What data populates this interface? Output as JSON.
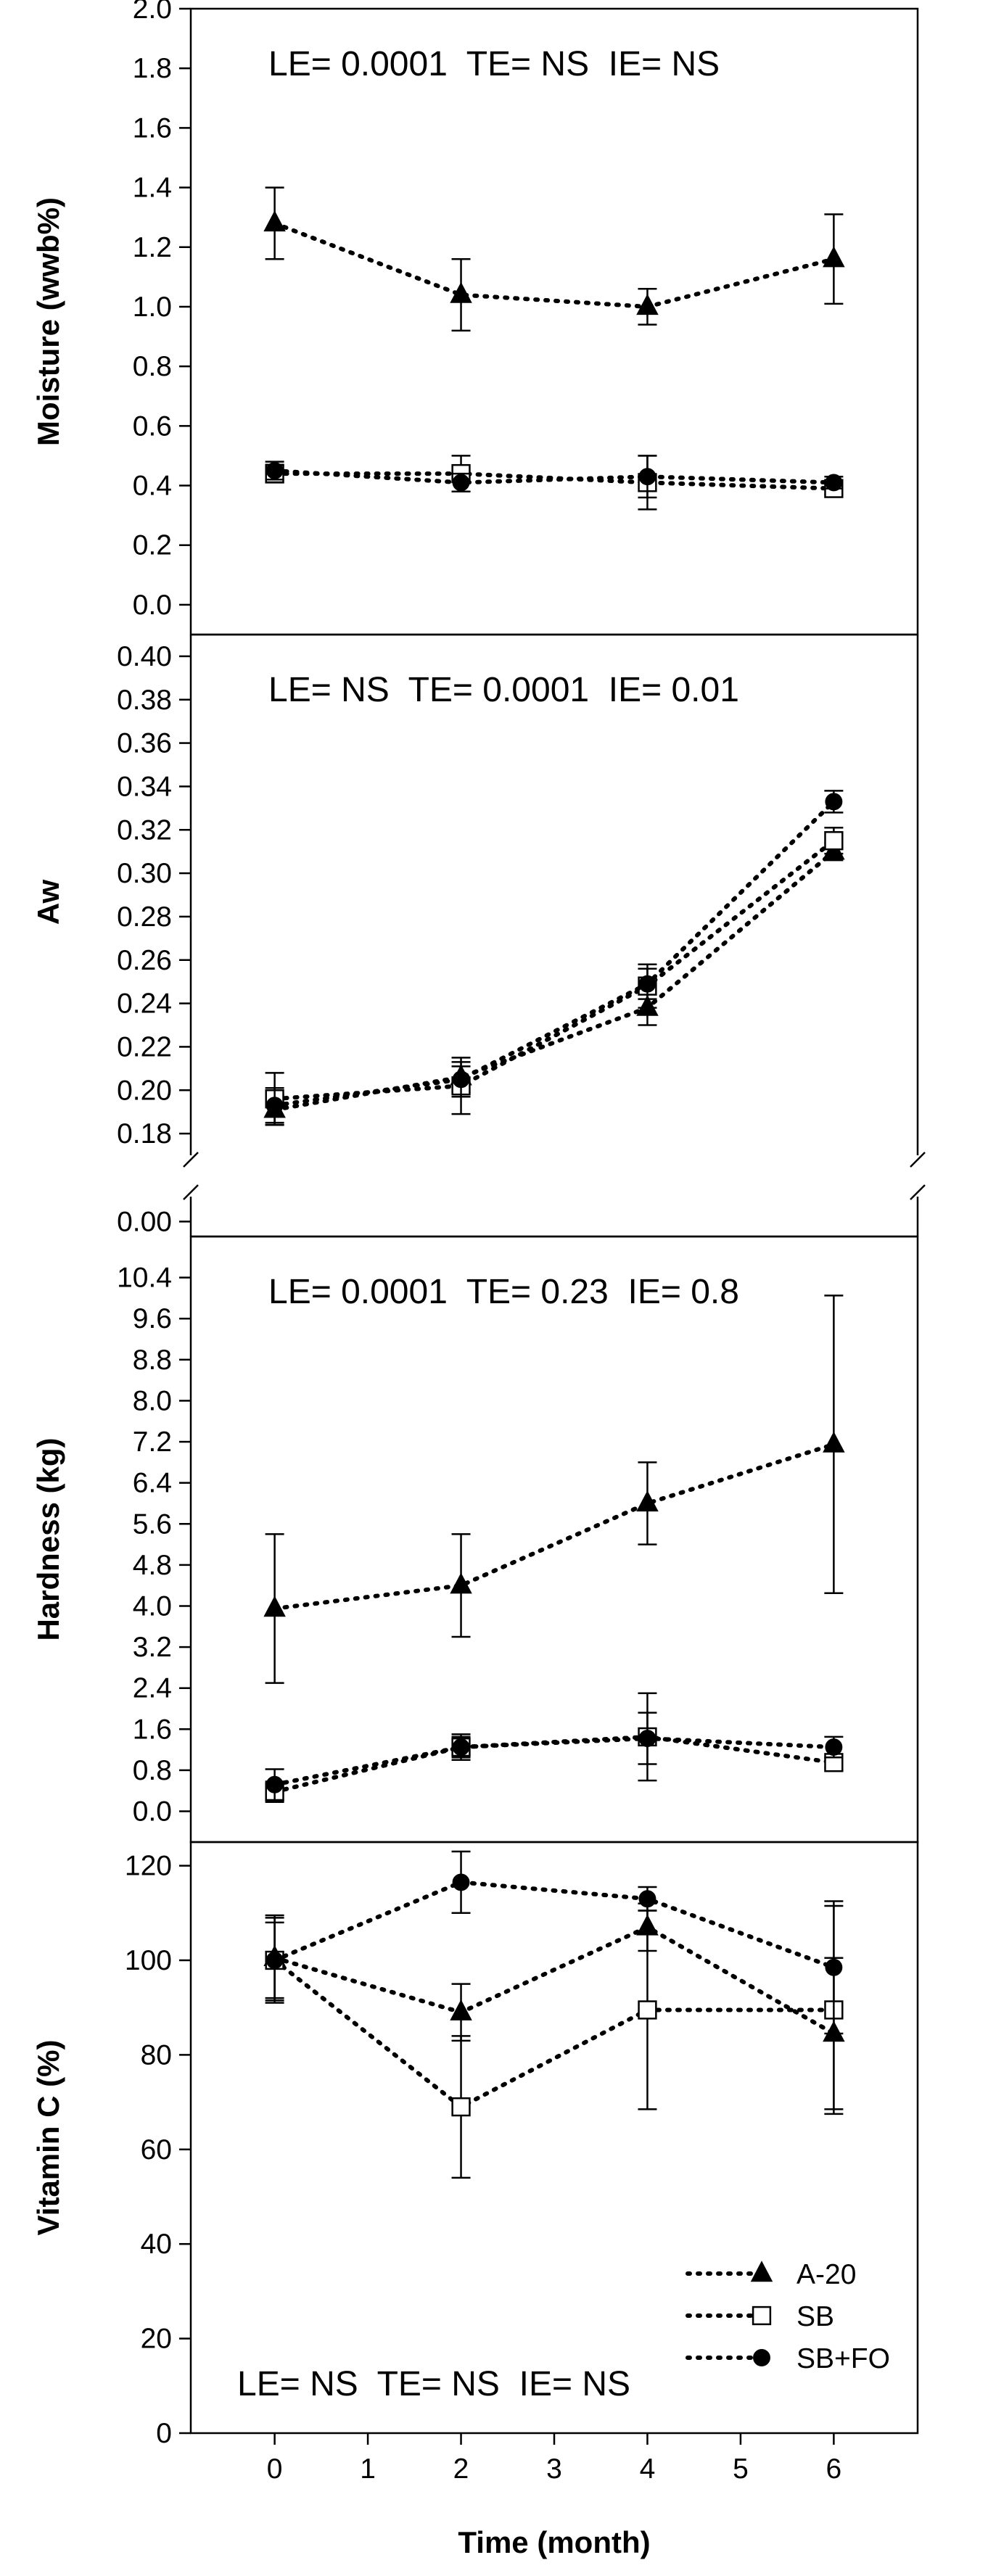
{
  "chart_data": {
    "x_axis": {
      "label": "Time (month)",
      "range": [
        -0.9,
        6.9
      ],
      "ticks": [
        0,
        1,
        2,
        3,
        4,
        5,
        6
      ]
    },
    "legend": {
      "placement": "lower-right of Vitamin C panel",
      "entries": [
        {
          "name": "A-20",
          "marker": "filled-triangle"
        },
        {
          "name": "SB",
          "marker": "open-square"
        },
        {
          "name": "SB+FO",
          "marker": "filled-circle"
        }
      ]
    },
    "panels": [
      {
        "type": "line",
        "ylabel": "Moisture (wwb%)",
        "ylim": [
          -0.1,
          2.0
        ],
        "yticks": [
          "0.0",
          "0.2",
          "0.4",
          "0.6",
          "0.8",
          "1.0",
          "1.2",
          "1.4",
          "1.6",
          "1.8",
          "2.0"
        ],
        "stats": "LE= 0.0001  TE= NS  IE= NS",
        "stats_position": "top",
        "x": [
          0,
          2,
          4,
          6
        ],
        "series": [
          {
            "name": "A-20",
            "values": [
              1.28,
              1.04,
              1.0,
              1.16
            ],
            "errors": [
              0.12,
              0.12,
              0.06,
              0.15
            ]
          },
          {
            "name": "SB",
            "values": [
              0.44,
              0.44,
              0.41,
              0.39
            ],
            "errors": [
              0.03,
              0.06,
              0.09,
              0.02
            ]
          },
          {
            "name": "SB+FO",
            "values": [
              0.45,
              0.41,
              0.43,
              0.41
            ],
            "errors": [
              0.03,
              0.03,
              0.07,
              0.02
            ]
          }
        ]
      },
      {
        "type": "line",
        "ylabel": "Aw",
        "axis_break": true,
        "ylim_upper": [
          0.17,
          0.41
        ],
        "ylim_lower": [
          -0.006,
          0.01
        ],
        "yticks": [
          "0.18",
          "0.20",
          "0.22",
          "0.24",
          "0.26",
          "0.28",
          "0.30",
          "0.32",
          "0.34",
          "0.36",
          "0.38",
          "0.40"
        ],
        "yticks_lower": [
          "0.00"
        ],
        "stats": "LE= NS  TE= 0.0001  IE= 0.01",
        "stats_position": "top",
        "x": [
          0,
          2,
          4,
          6
        ],
        "series": [
          {
            "name": "A-20",
            "values": [
              0.191,
              0.206,
              0.238,
              0.31
            ],
            "errors": [
              0.007,
              0.005,
              0.008,
              0.004
            ]
          },
          {
            "name": "SB",
            "values": [
              0.196,
              0.202,
              0.248,
              0.315
            ],
            "errors": [
              0.012,
              0.013,
              0.01,
              0.006
            ]
          },
          {
            "name": "SB+FO",
            "values": [
              0.193,
              0.205,
              0.249,
              0.333
            ],
            "errors": [
              0.008,
              0.008,
              0.007,
              0.005
            ]
          }
        ]
      },
      {
        "type": "line",
        "ylabel": "Hardness (kg)",
        "ylim": [
          -0.6,
          11.2
        ],
        "yticks": [
          "0.0",
          "0.8",
          "1.6",
          "2.4",
          "3.2",
          "4.0",
          "4.8",
          "5.6",
          "6.4",
          "7.2",
          "8.0",
          "8.8",
          "9.6",
          "10.4"
        ],
        "stats": "LE= 0.0001  TE= 0.23  IE= 0.8",
        "stats_position": "top",
        "x": [
          0,
          2,
          4,
          6
        ],
        "series": [
          {
            "name": "A-20",
            "values": [
              3.95,
              4.4,
              6.0,
              7.15
            ],
            "errors": [
              1.45,
              1.0,
              0.8,
              2.9
            ]
          },
          {
            "name": "SB",
            "values": [
              0.38,
              1.25,
              1.45,
              0.95
            ],
            "errors": [
              0.2,
              0.2,
              0.85,
              0.1
            ]
          },
          {
            "name": "SB+FO",
            "values": [
              0.52,
              1.25,
              1.42,
              1.25
            ],
            "errors": [
              0.3,
              0.25,
              0.5,
              0.2
            ]
          }
        ]
      },
      {
        "type": "line",
        "ylabel": "Vitamin C (%)",
        "ylim": [
          0,
          125
        ],
        "yticks": [
          "0",
          "20",
          "40",
          "60",
          "80",
          "100",
          "120"
        ],
        "stats": "LE= NS  TE= NS  IE= NS",
        "stats_position": "bottom",
        "x": [
          0,
          2,
          4,
          6
        ],
        "series": [
          {
            "name": "A-20",
            "values": [
              100.5,
              89.0,
              107.0,
              84.5
            ],
            "errors": [
              9.0,
              6.0,
              5.0,
              16.0
            ]
          },
          {
            "name": "SB",
            "values": [
              100.0,
              69.0,
              89.5,
              89.5
            ],
            "errors": [
              9.0,
              15.0,
              21.0,
              22.0
            ]
          },
          {
            "name": "SB+FO",
            "values": [
              100.0,
              116.5,
              113.0,
              98.5
            ],
            "errors": [
              8.0,
              6.5,
              2.5,
              14.0
            ]
          }
        ]
      }
    ]
  }
}
